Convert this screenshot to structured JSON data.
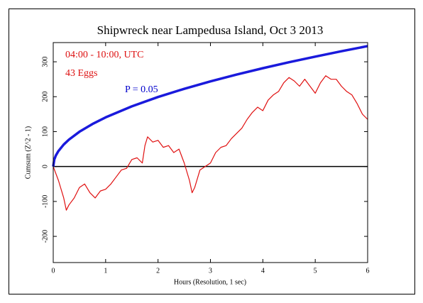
{
  "chart_data": {
    "type": "line",
    "title": "Shipwreck near Lampedusa Island, Oct 3 2013",
    "xlabel": "Hours (Resolution, 1 sec)",
    "ylabel": "Cumsum (Z^2 - 1)",
    "annotations": [
      {
        "text": "04:00 - 10:00, UTC",
        "color": "#dd1111"
      },
      {
        "text": "43 Eggs",
        "color": "#dd1111"
      },
      {
        "text": "P = 0.05",
        "color": "#0000cc"
      }
    ],
    "xlim": [
      0,
      6
    ],
    "ylim": [
      -275,
      355
    ],
    "xticks": [
      0,
      1,
      2,
      3,
      4,
      5,
      6
    ],
    "yticks": [
      -200,
      -100,
      0,
      100,
      200,
      300
    ],
    "reference_line": 0,
    "series": [
      {
        "name": "P = 0.05",
        "color": "#1a1adc",
        "width": 3.5,
        "x": [
          0,
          0.02,
          0.05,
          0.1,
          0.2,
          0.3,
          0.5,
          0.75,
          1,
          1.5,
          2,
          2.5,
          3,
          3.5,
          4,
          4.5,
          5,
          5.5,
          6
        ],
        "values": [
          0,
          19.9,
          31.5,
          44.5,
          63.0,
          77.1,
          99.6,
          121.9,
          140.8,
          172.4,
          199.1,
          222.6,
          243.9,
          263.4,
          281.6,
          298.7,
          314.8,
          330.2,
          344.9
        ]
      },
      {
        "name": "Cumsum",
        "color": "#e01010",
        "width": 1.2,
        "x": [
          0,
          0.1,
          0.2,
          0.25,
          0.3,
          0.4,
          0.5,
          0.6,
          0.7,
          0.8,
          0.9,
          1.0,
          1.1,
          1.2,
          1.3,
          1.4,
          1.5,
          1.6,
          1.7,
          1.75,
          1.8,
          1.9,
          2.0,
          2.1,
          2.2,
          2.3,
          2.4,
          2.5,
          2.6,
          2.65,
          2.7,
          2.8,
          2.9,
          3.0,
          3.1,
          3.2,
          3.3,
          3.4,
          3.5,
          3.6,
          3.7,
          3.8,
          3.9,
          4.0,
          4.1,
          4.2,
          4.3,
          4.4,
          4.5,
          4.6,
          4.7,
          4.8,
          4.9,
          5.0,
          5.1,
          5.2,
          5.3,
          5.4,
          5.5,
          5.6,
          5.7,
          5.8,
          5.9,
          6.0
        ],
        "values": [
          0,
          -40,
          -90,
          -125,
          -110,
          -90,
          -60,
          -50,
          -75,
          -90,
          -70,
          -65,
          -50,
          -30,
          -10,
          -5,
          20,
          25,
          10,
          60,
          85,
          70,
          75,
          55,
          60,
          40,
          50,
          10,
          -40,
          -75,
          -60,
          -10,
          0,
          10,
          40,
          55,
          60,
          80,
          95,
          110,
          135,
          155,
          170,
          160,
          190,
          205,
          215,
          240,
          255,
          245,
          230,
          250,
          230,
          210,
          240,
          260,
          250,
          250,
          230,
          215,
          205,
          180,
          150,
          135
        ]
      }
    ]
  }
}
